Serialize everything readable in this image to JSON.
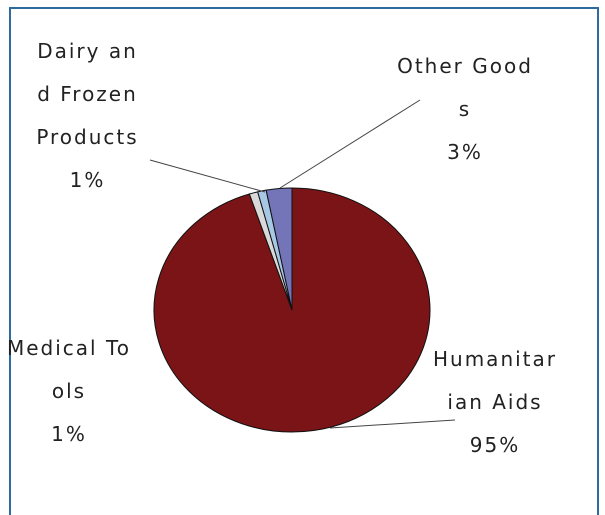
{
  "chart_data": {
    "type": "pie",
    "categories": [
      "Humanitarian Aids",
      "Medical Tools",
      "Dairy and Frozen Products",
      "Other Goods"
    ],
    "values": [
      95,
      1,
      1,
      3
    ],
    "value_labels": [
      "95%",
      "1%",
      "1%",
      "3%"
    ],
    "colors": [
      "#7b1416",
      "#d9d9d9",
      "#a7c8e4",
      "#7474b8"
    ]
  }
}
